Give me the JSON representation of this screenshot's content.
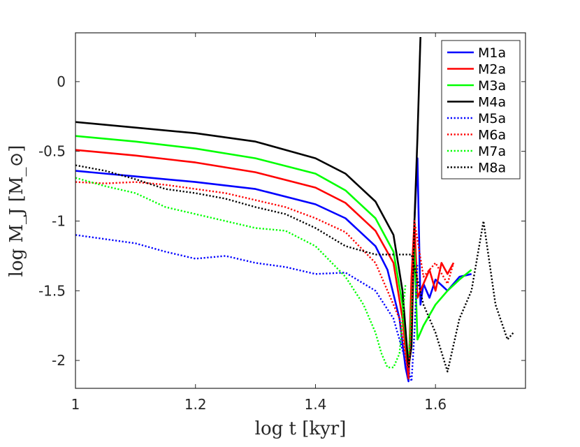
{
  "chart_data": {
    "type": "line",
    "title": "",
    "xlabel": "log t [kyr]",
    "ylabel": "log M_J [M_⊙]",
    "xlim": [
      1.0,
      1.75
    ],
    "ylim": [
      -2.2,
      0.35
    ],
    "xticks": [
      1.0,
      1.2,
      1.4,
      1.6
    ],
    "xtick_labels": [
      "1",
      "1.2",
      "1.4",
      "1.6"
    ],
    "yticks": [
      0,
      -0.5,
      -1,
      -1.5,
      -2
    ],
    "ytick_labels": [
      "0",
      "-0.5",
      "-1",
      "-1.5",
      "-2"
    ],
    "legend_position": "top-right",
    "series": [
      {
        "name": "M1a",
        "color": "#0000ff",
        "style": "solid",
        "x": [
          1.0,
          1.1,
          1.2,
          1.3,
          1.4,
          1.45,
          1.5,
          1.52,
          1.54,
          1.55,
          1.555,
          1.56,
          1.565,
          1.57,
          1.575,
          1.58,
          1.59,
          1.6,
          1.62,
          1.64,
          1.66
        ],
        "y": [
          -0.64,
          -0.68,
          -0.72,
          -0.77,
          -0.88,
          -0.98,
          -1.18,
          -1.35,
          -1.7,
          -2.05,
          -2.15,
          -1.6,
          -1.0,
          -0.55,
          -1.6,
          -1.45,
          -1.55,
          -1.42,
          -1.5,
          -1.4,
          -1.38
        ]
      },
      {
        "name": "M2a",
        "color": "#ff0000",
        "style": "solid",
        "x": [
          1.0,
          1.1,
          1.2,
          1.3,
          1.4,
          1.45,
          1.5,
          1.53,
          1.545,
          1.555,
          1.56,
          1.565,
          1.57,
          1.58,
          1.59,
          1.6,
          1.61,
          1.62,
          1.63
        ],
        "y": [
          -0.49,
          -0.53,
          -0.58,
          -0.65,
          -0.76,
          -0.87,
          -1.07,
          -1.3,
          -1.7,
          -2.13,
          -1.4,
          -1.0,
          -1.55,
          -1.45,
          -1.35,
          -1.5,
          -1.3,
          -1.38,
          -1.3
        ]
      },
      {
        "name": "M3a",
        "color": "#00ff00",
        "style": "solid",
        "x": [
          1.0,
          1.1,
          1.2,
          1.3,
          1.4,
          1.45,
          1.5,
          1.53,
          1.545,
          1.555,
          1.565,
          1.57,
          1.58,
          1.6,
          1.62,
          1.64,
          1.66
        ],
        "y": [
          -0.39,
          -0.43,
          -0.48,
          -0.55,
          -0.66,
          -0.78,
          -0.98,
          -1.22,
          -1.6,
          -2.05,
          -1.2,
          -1.85,
          -1.75,
          -1.6,
          -1.5,
          -1.42,
          -1.35
        ]
      },
      {
        "name": "M4a",
        "color": "#000000",
        "style": "solid",
        "x": [
          1.0,
          1.1,
          1.2,
          1.3,
          1.4,
          1.45,
          1.5,
          1.53,
          1.545,
          1.555,
          1.56,
          1.565,
          1.57,
          1.575
        ],
        "y": [
          -0.29,
          -0.33,
          -0.37,
          -0.43,
          -0.55,
          -0.66,
          -0.86,
          -1.1,
          -1.5,
          -2.05,
          -1.9,
          -1.0,
          -0.4,
          0.32
        ]
      },
      {
        "name": "M5a",
        "color": "#0000ff",
        "style": "dotted",
        "x": [
          1.0,
          1.05,
          1.1,
          1.15,
          1.2,
          1.25,
          1.3,
          1.35,
          1.4,
          1.45,
          1.5,
          1.53,
          1.55,
          1.56,
          1.565,
          1.57
        ],
        "y": [
          -1.1,
          -1.13,
          -1.16,
          -1.22,
          -1.27,
          -1.25,
          -1.3,
          -1.33,
          -1.38,
          -1.37,
          -1.5,
          -1.7,
          -2.0,
          -2.15,
          -1.8,
          -1.3
        ]
      },
      {
        "name": "M6a",
        "color": "#ff0000",
        "style": "dotted",
        "x": [
          1.0,
          1.05,
          1.1,
          1.15,
          1.2,
          1.25,
          1.3,
          1.35,
          1.4,
          1.45,
          1.5,
          1.54,
          1.555,
          1.56,
          1.565,
          1.58,
          1.6,
          1.62,
          1.63
        ],
        "y": [
          -0.72,
          -0.73,
          -0.72,
          -0.74,
          -0.77,
          -0.8,
          -0.85,
          -0.9,
          -0.98,
          -1.08,
          -1.3,
          -1.7,
          -2.1,
          -1.7,
          -1.0,
          -1.4,
          -1.3,
          -1.45,
          -1.3
        ]
      },
      {
        "name": "M7a",
        "color": "#00ff00",
        "style": "dotted",
        "x": [
          1.0,
          1.05,
          1.1,
          1.15,
          1.2,
          1.25,
          1.3,
          1.35,
          1.4,
          1.45,
          1.48,
          1.5,
          1.51,
          1.52,
          1.53,
          1.54,
          1.545,
          1.55
        ],
        "y": [
          -0.69,
          -0.75,
          -0.8,
          -0.9,
          -0.95,
          -1.0,
          -1.05,
          -1.07,
          -1.18,
          -1.4,
          -1.6,
          -1.8,
          -1.95,
          -2.05,
          -2.05,
          -1.95,
          -1.7,
          -1.45
        ]
      },
      {
        "name": "M8a",
        "color": "#000000",
        "style": "dotted",
        "x": [
          1.0,
          1.05,
          1.1,
          1.15,
          1.2,
          1.25,
          1.3,
          1.35,
          1.4,
          1.45,
          1.5,
          1.55,
          1.56,
          1.58,
          1.6,
          1.62,
          1.64,
          1.66,
          1.68,
          1.7,
          1.72,
          1.73
        ],
        "y": [
          -0.6,
          -0.64,
          -0.7,
          -0.77,
          -0.8,
          -0.84,
          -0.9,
          -0.95,
          -1.05,
          -1.18,
          -1.24,
          -1.24,
          -1.24,
          -1.6,
          -1.8,
          -2.08,
          -1.7,
          -1.5,
          -1.0,
          -1.6,
          -1.85,
          -1.8
        ]
      }
    ]
  }
}
